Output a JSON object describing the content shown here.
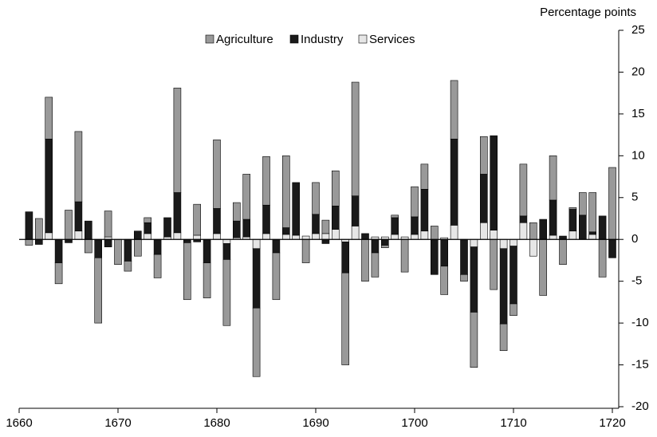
{
  "chart_data": {
    "type": "bar",
    "stacked": true,
    "y_label": "Percentage points",
    "x": [
      1661,
      1662,
      1663,
      1664,
      1665,
      1666,
      1667,
      1668,
      1669,
      1670,
      1671,
      1672,
      1673,
      1674,
      1675,
      1676,
      1677,
      1678,
      1679,
      1680,
      1681,
      1682,
      1683,
      1684,
      1685,
      1686,
      1687,
      1688,
      1689,
      1690,
      1691,
      1692,
      1693,
      1694,
      1695,
      1696,
      1697,
      1698,
      1699,
      1700,
      1701,
      1702,
      1703,
      1704,
      1705,
      1706,
      1707,
      1708,
      1709,
      1710,
      1711,
      1712,
      1713,
      1714,
      1715,
      1716,
      1717,
      1718,
      1719,
      1720
    ],
    "series": [
      {
        "name": "Agriculture",
        "color": "#999999",
        "values": [
          -0.7,
          2.5,
          5,
          -2.5,
          3.5,
          8.4,
          -1.6,
          -7.8,
          3.1,
          -3,
          -1.2,
          -2,
          0.6,
          -2.8,
          0,
          12.5,
          -6.8,
          3.7,
          -4.2,
          8.2,
          -7.9,
          2.2,
          5.4,
          -8.2,
          5.8,
          -5.6,
          8.6,
          0,
          -2.8,
          3.8,
          1.6,
          4.2,
          -11,
          13.6,
          -5,
          -2.9,
          -0.3,
          0.3,
          -3.9,
          3.6,
          3,
          1.6,
          -3.4,
          7,
          -0.8,
          -6.6,
          4.5,
          -6,
          -3.2,
          -1.4,
          6.2,
          2,
          -6.7,
          5.3,
          -3,
          0.2,
          2.7,
          4.7,
          -4.5,
          8.6
        ]
      },
      {
        "name": "Industry",
        "color": "#1a1a1a",
        "values": [
          3.3,
          -0.6,
          11.2,
          -2.8,
          -0.4,
          3.5,
          2.2,
          -2.2,
          -0.9,
          0,
          -2.6,
          1,
          1.3,
          -1.8,
          2.3,
          4.8,
          -0.4,
          -0.3,
          -2.8,
          3,
          -1.9,
          2,
          2.1,
          -7.1,
          3.4,
          -1.6,
          0.8,
          6.3,
          0,
          2.3,
          -0.5,
          2.8,
          -3.7,
          3.6,
          0.7,
          -1.6,
          -0.7,
          2,
          0,
          2.1,
          5,
          -4.2,
          -3.2,
          10.3,
          -4.2,
          -7.8,
          5.8,
          11.3,
          -9,
          -6.9,
          0.8,
          0,
          2.4,
          4.2,
          0.4,
          2.6,
          2.9,
          0.3,
          2.8,
          -2.2
        ]
      },
      {
        "name": "Services",
        "color": "#e6e6e6",
        "values": [
          0,
          0,
          0.8,
          0,
          0,
          1,
          0,
          0,
          0.3,
          0,
          0,
          0,
          0.7,
          0,
          0.3,
          0.8,
          0,
          0.5,
          0,
          0.7,
          -0.5,
          0.2,
          0.3,
          -1.1,
          0.7,
          0,
          0.6,
          0.5,
          0.4,
          0.7,
          0.7,
          1.2,
          -0.3,
          1.6,
          0,
          0.3,
          0.3,
          0.6,
          0.3,
          0.6,
          1,
          0,
          0.2,
          1.7,
          0,
          -0.9,
          2,
          1.1,
          -1.1,
          -0.8,
          2,
          -2,
          0,
          0.5,
          0,
          1,
          0,
          0.6,
          0,
          0
        ]
      }
    ],
    "xlim": [
      1660,
      1720
    ],
    "xticks": [
      1660,
      1670,
      1680,
      1690,
      1700,
      1710,
      1720
    ],
    "ylim": [
      -20,
      25
    ],
    "yticks": [
      -20,
      -15,
      -10,
      -5,
      0,
      5,
      10,
      15,
      20,
      25
    ]
  }
}
